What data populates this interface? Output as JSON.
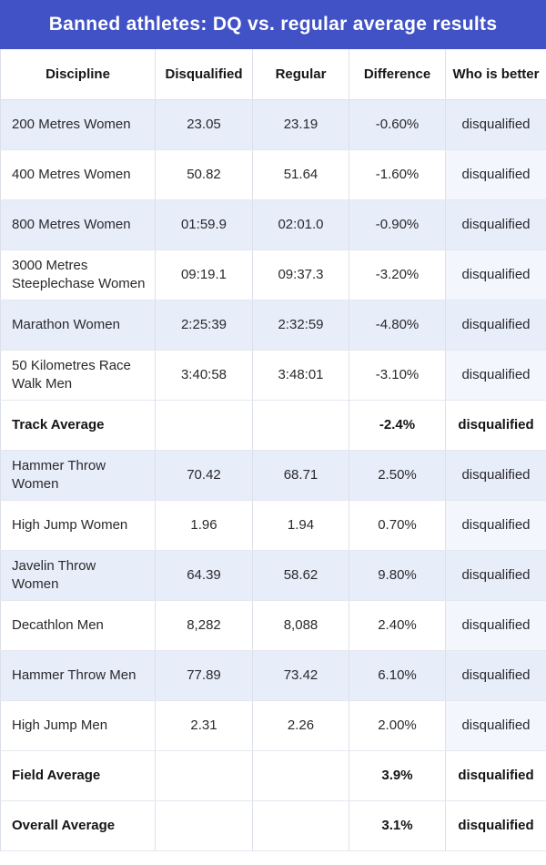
{
  "title": "Banned athletes: DQ vs. regular average results",
  "colors": {
    "banner_bg": "#4152C6",
    "banner_text": "#FFFFFF",
    "shaded_row_bg": "#E7EDF9",
    "who_column_tint_bg": "#F3F6FC",
    "grid_border": "#DCE0E9",
    "header_text": "#161616",
    "body_text": "#2A2A2E"
  },
  "chart_data": {
    "type": "table",
    "title": "Banned athletes: DQ vs. regular average results",
    "columns": [
      "Discipline",
      "Disqualified",
      "Regular",
      "Difference",
      "Who is better"
    ],
    "rows": [
      {
        "discipline": "200 Metres Women",
        "disqualified": "23.05",
        "regular": "23.19",
        "difference": "-0.60%",
        "who_is_better": "disqualified",
        "shaded": true,
        "bold": false
      },
      {
        "discipline": "400 Metres Women",
        "disqualified": "50.82",
        "regular": "51.64",
        "difference": "-1.60%",
        "who_is_better": "disqualified",
        "shaded": false,
        "bold": false
      },
      {
        "discipline": "800 Metres Women",
        "disqualified": "01:59.9",
        "regular": "02:01.0",
        "difference": "-0.90%",
        "who_is_better": "disqualified",
        "shaded": true,
        "bold": false
      },
      {
        "discipline": "3000 Metres Steeplechase Women",
        "disqualified": "09:19.1",
        "regular": "09:37.3",
        "difference": "-3.20%",
        "who_is_better": "disqualified",
        "shaded": false,
        "bold": false
      },
      {
        "discipline": "Marathon Women",
        "disqualified": "2:25:39",
        "regular": "2:32:59",
        "difference": "-4.80%",
        "who_is_better": "disqualified",
        "shaded": true,
        "bold": false
      },
      {
        "discipline": "50 Kilometres Race Walk Men",
        "disqualified": "3:40:58",
        "regular": "3:48:01",
        "difference": "-3.10%",
        "who_is_better": "disqualified",
        "shaded": false,
        "bold": false
      },
      {
        "discipline": "Track Average",
        "disqualified": "",
        "regular": "",
        "difference": "-2.4%",
        "who_is_better": "disqualified",
        "shaded": false,
        "bold": true
      },
      {
        "discipline": "Hammer Throw Women",
        "disqualified": "70.42",
        "regular": "68.71",
        "difference": "2.50%",
        "who_is_better": "disqualified",
        "shaded": true,
        "bold": false
      },
      {
        "discipline": "High Jump Women",
        "disqualified": "1.96",
        "regular": "1.94",
        "difference": "0.70%",
        "who_is_better": "disqualified",
        "shaded": false,
        "bold": false
      },
      {
        "discipline": "Javelin Throw Women",
        "disqualified": "64.39",
        "regular": "58.62",
        "difference": "9.80%",
        "who_is_better": "disqualified",
        "shaded": true,
        "bold": false
      },
      {
        "discipline": "Decathlon Men",
        "disqualified": "8,282",
        "regular": "8,088",
        "difference": "2.40%",
        "who_is_better": "disqualified",
        "shaded": false,
        "bold": false
      },
      {
        "discipline": "Hammer Throw Men",
        "disqualified": "77.89",
        "regular": "73.42",
        "difference": "6.10%",
        "who_is_better": "disqualified",
        "shaded": true,
        "bold": false
      },
      {
        "discipline": "High Jump Men",
        "disqualified": "2.31",
        "regular": "2.26",
        "difference": "2.00%",
        "who_is_better": "disqualified",
        "shaded": false,
        "bold": false
      },
      {
        "discipline": "Field Average",
        "disqualified": "",
        "regular": "",
        "difference": "3.9%",
        "who_is_better": "disqualified",
        "shaded": false,
        "bold": true
      },
      {
        "discipline": "Overall Average",
        "disqualified": "",
        "regular": "",
        "difference": "3.1%",
        "who_is_better": "disqualified",
        "shaded": false,
        "bold": true
      }
    ]
  }
}
